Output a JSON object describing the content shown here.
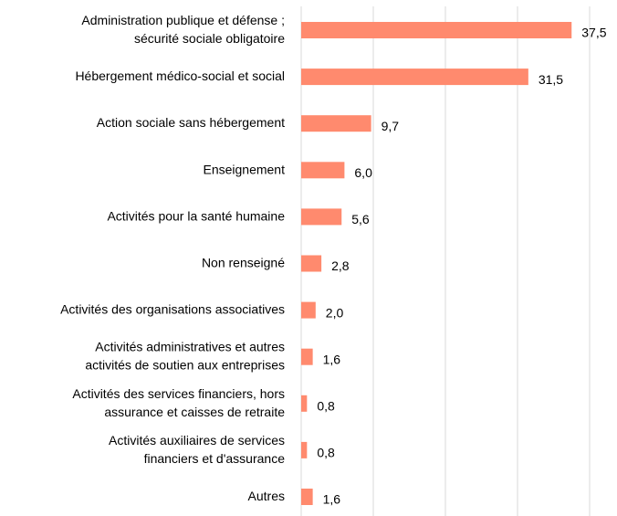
{
  "chart_data": {
    "type": "bar",
    "orientation": "horizontal",
    "categories": [
      [
        "Administration publique et défense ;",
        "sécurité sociale obligatoire"
      ],
      [
        "Hébergement médico-social et social"
      ],
      [
        "Action sociale sans hébergement"
      ],
      [
        "Enseignement"
      ],
      [
        "Activités pour la santé humaine"
      ],
      [
        "Non renseigné"
      ],
      [
        "Activités des organisations associatives"
      ],
      [
        "Activités administratives et autres",
        "activités de soutien aux entreprises"
      ],
      [
        "Activités des services financiers, hors",
        "assurance et caisses de retraite"
      ],
      [
        "Activités auxiliaires de services",
        "financiers et d'assurance"
      ],
      [
        "Autres"
      ]
    ],
    "values": [
      37.5,
      31.5,
      9.7,
      6.0,
      5.6,
      2.8,
      2.0,
      1.6,
      0.8,
      0.8,
      1.6
    ],
    "value_labels": [
      "37,5",
      "31,5",
      "9,7",
      "6,0",
      "5,6",
      "2,8",
      "2,0",
      "1,6",
      "0,8",
      "0,8",
      "1,6"
    ],
    "color": "#ff8a6e",
    "xlim": [
      0,
      40
    ],
    "xticks": [
      0,
      10,
      20,
      30,
      40
    ],
    "grid": true
  }
}
